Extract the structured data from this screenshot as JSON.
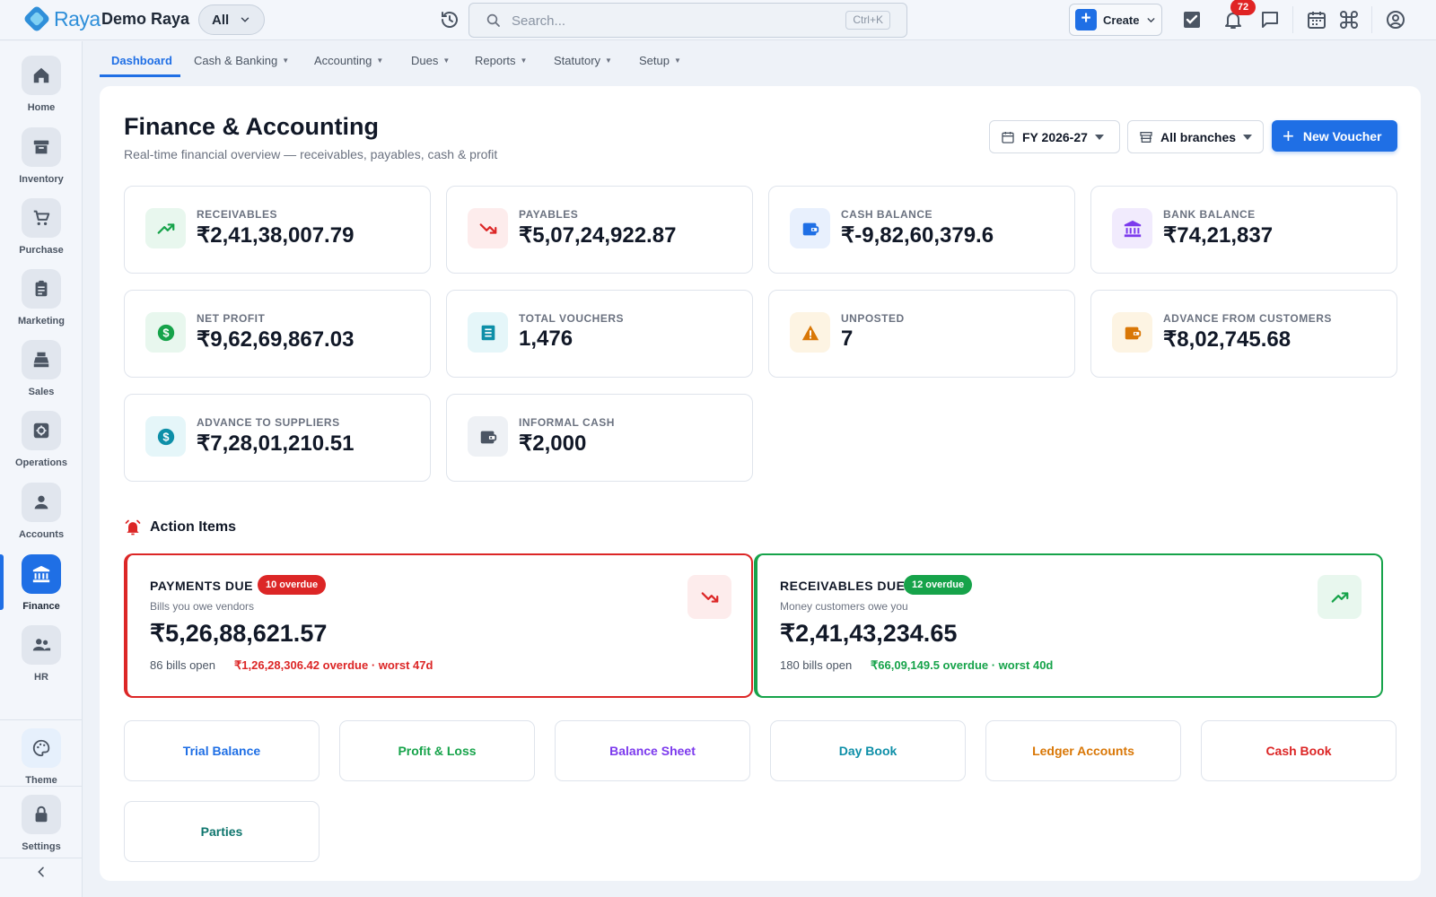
{
  "app": {
    "brand": "Raya",
    "org_name": "Demo Raya",
    "scope": "All"
  },
  "search": {
    "placeholder": "Search...",
    "shortcut": "Ctrl+K"
  },
  "topbar": {
    "create_label": "Create",
    "notification_count": "72",
    "icons": [
      "history-icon",
      "tasks-icon",
      "bell-icon",
      "chat-icon",
      "calendar-icon",
      "command-icon",
      "user-circle-icon"
    ]
  },
  "sidebar": {
    "items": [
      {
        "label": "Home",
        "icon": "home-icon"
      },
      {
        "label": "Inventory",
        "icon": "archive-icon"
      },
      {
        "label": "Purchase",
        "icon": "cart-icon"
      },
      {
        "label": "Marketing",
        "icon": "clipboard-icon"
      },
      {
        "label": "Sales",
        "icon": "register-icon"
      },
      {
        "label": "Operations",
        "icon": "cog-icon"
      },
      {
        "label": "Accounts",
        "icon": "person-icon"
      },
      {
        "label": "Finance",
        "icon": "bank-icon",
        "active": true
      },
      {
        "label": "HR",
        "icon": "people-icon"
      }
    ],
    "theme_label": "Theme",
    "settings_label": "Settings"
  },
  "tabs": [
    {
      "label": "Dashboard",
      "active": true
    },
    {
      "label": "Cash & Banking"
    },
    {
      "label": "Accounting"
    },
    {
      "label": "Dues"
    },
    {
      "label": "Reports"
    },
    {
      "label": "Statutory"
    },
    {
      "label": "Setup"
    }
  ],
  "page": {
    "title": "Finance & Accounting",
    "subtitle": "Real-time financial overview — receivables, payables, cash & profit",
    "fy": "FY 2026-27",
    "branch": "All branches",
    "new_voucher": "New Voucher"
  },
  "stats": [
    {
      "key": "RECEIVABLES",
      "value": "₹2,41,38,007.79",
      "icon": "trend-up-icon",
      "color": "#16a34a",
      "bg": "#e8f7ee"
    },
    {
      "key": "PAYABLES",
      "value": "₹5,07,24,922.87",
      "icon": "trend-down-icon",
      "color": "#dc2626",
      "bg": "#fdecec"
    },
    {
      "key": "CASH BALANCE",
      "value": "₹-9,82,60,379.6",
      "icon": "wallet-icon",
      "color": "#1f6fe5",
      "bg": "#e8f0fd"
    },
    {
      "key": "BANK BALANCE",
      "value": "₹74,21,837",
      "icon": "bank-icon",
      "color": "#7c3aed",
      "bg": "#f1ebfd"
    },
    {
      "key": "NET PROFIT",
      "value": "₹9,62,69,867.03",
      "icon": "dollar-icon",
      "color": "#16a34a",
      "bg": "#e8f7ee"
    },
    {
      "key": "TOTAL VOUCHERS",
      "value": "1,476",
      "icon": "receipt-icon",
      "color": "#0e8fa8",
      "bg": "#e5f6f9"
    },
    {
      "key": "UNPOSTED",
      "value": "7",
      "icon": "warning-icon",
      "color": "#d97706",
      "bg": "#fdf4e3"
    },
    {
      "key": "ADVANCE FROM CUSTOMERS",
      "value": "₹8,02,745.68",
      "icon": "wallet-icon",
      "color": "#d97706",
      "bg": "#fdf4e3"
    },
    {
      "key": "ADVANCE TO SUPPLIERS",
      "value": "₹7,28,01,210.51",
      "icon": "dollar-icon",
      "color": "#0e8fa8",
      "bg": "#e5f6f9"
    },
    {
      "key": "INFORMAL CASH",
      "value": "₹2,000",
      "icon": "wallet-icon",
      "color": "#4b5563",
      "bg": "#eef1f5"
    }
  ],
  "action_items": {
    "title": "Action Items",
    "payments": {
      "title": "PAYMENTS DUE",
      "pill": "10 overdue",
      "desc": "Bills you owe vendors",
      "amount": "₹5,26,88,621.57",
      "open": "86 bills open",
      "overdue": "₹1,26,28,306.42 overdue · worst 47d",
      "color": "#dc2626"
    },
    "receivables": {
      "title": "RECEIVABLES DUE",
      "pill": "12 overdue",
      "desc": "Money customers owe you",
      "amount": "₹2,41,43,234.65",
      "open": "180 bills open",
      "overdue": "₹66,09,149.5 overdue · worst 40d",
      "color": "#16a34a"
    }
  },
  "quick_links": [
    {
      "label": "Trial Balance",
      "color": "#1f6fe5"
    },
    {
      "label": "Profit & Loss",
      "color": "#16a34a"
    },
    {
      "label": "Balance Sheet",
      "color": "#7c3aed"
    },
    {
      "label": "Day Book",
      "color": "#0e8fa8"
    },
    {
      "label": "Ledger Accounts",
      "color": "#d97706"
    },
    {
      "label": "Cash Book",
      "color": "#dc2626"
    },
    {
      "label": "Parties",
      "color": "#0f766e"
    }
  ]
}
